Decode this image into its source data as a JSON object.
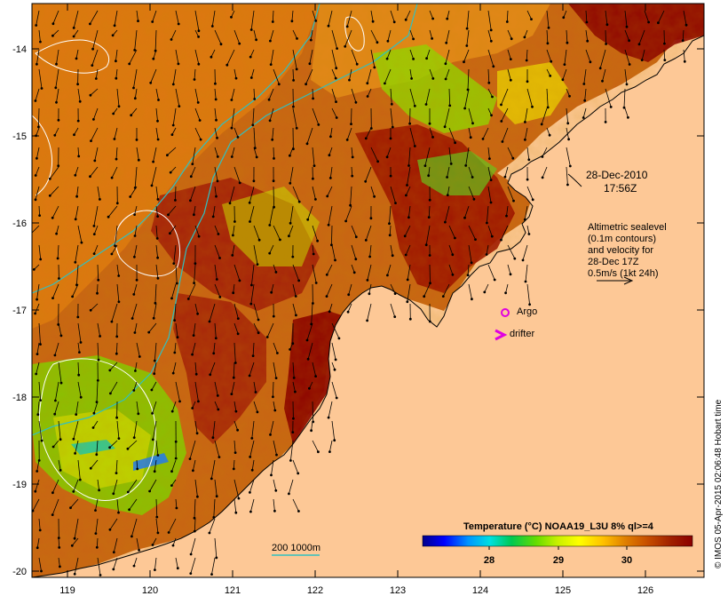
{
  "map": {
    "x_ticks": [
      "119",
      "120",
      "121",
      "122",
      "123",
      "124",
      "125",
      "126"
    ],
    "y_ticks": [
      "-14",
      "-15",
      "-16",
      "-17",
      "-18",
      "-19",
      "-20"
    ],
    "date_label": "28-Dec-2010",
    "time_label": "17:56Z",
    "altimetry_lines": [
      "Altimetric sealevel",
      "(0.1m contours)",
      "and velocity for",
      "28-Dec 17Z",
      "0.5m/s (1kt 24h)"
    ],
    "argo_label": "Argo",
    "drifter_label": "drifter",
    "isobath_label": "200  1000m",
    "colorbar": {
      "title": "Temperature (°C) NOAA19_L3U 8% ql>=4",
      "tick_labels": [
        "28",
        "29",
        "30"
      ],
      "colors": [
        "#00008b",
        "#0000ff",
        "#0096ff",
        "#00e0e0",
        "#00c850",
        "#64dc00",
        "#c8f000",
        "#ffff00",
        "#ffc000",
        "#e08000",
        "#c85000",
        "#a02000",
        "#8b0000"
      ]
    },
    "copyright": "© IMOS 05-Apr-2015 02:06:48 Hobart time",
    "colors": {
      "land": "#fdc896",
      "sea_warm": "#8b0000",
      "argo": "#e000e0",
      "isobath": "#30c0c0"
    }
  }
}
